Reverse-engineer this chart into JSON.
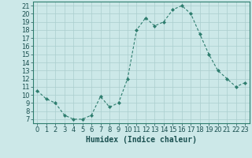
{
  "x": [
    0,
    1,
    2,
    3,
    4,
    5,
    6,
    7,
    8,
    9,
    10,
    11,
    12,
    13,
    14,
    15,
    16,
    17,
    18,
    19,
    20,
    21,
    22,
    23
  ],
  "y": [
    10.5,
    9.5,
    9.0,
    7.5,
    7.0,
    7.0,
    7.5,
    9.8,
    8.5,
    9.0,
    12.0,
    18.0,
    19.5,
    18.5,
    19.0,
    20.5,
    21.0,
    20.0,
    17.5,
    15.0,
    13.0,
    12.0,
    11.0,
    11.5
  ],
  "line_color": "#2e7d6e",
  "marker_color": "#2e7d6e",
  "bg_color": "#cce8e8",
  "grid_color": "#aacece",
  "xlabel": "Humidex (Indice chaleur)",
  "ylim": [
    6.5,
    21.5
  ],
  "xlim": [
    -0.5,
    23.5
  ],
  "yticks": [
    7,
    8,
    9,
    10,
    11,
    12,
    13,
    14,
    15,
    16,
    17,
    18,
    19,
    20,
    21
  ],
  "xticks": [
    0,
    1,
    2,
    3,
    4,
    5,
    6,
    7,
    8,
    9,
    10,
    11,
    12,
    13,
    14,
    15,
    16,
    17,
    18,
    19,
    20,
    21,
    22,
    23
  ],
  "xlabel_fontsize": 7,
  "tick_fontsize": 6
}
